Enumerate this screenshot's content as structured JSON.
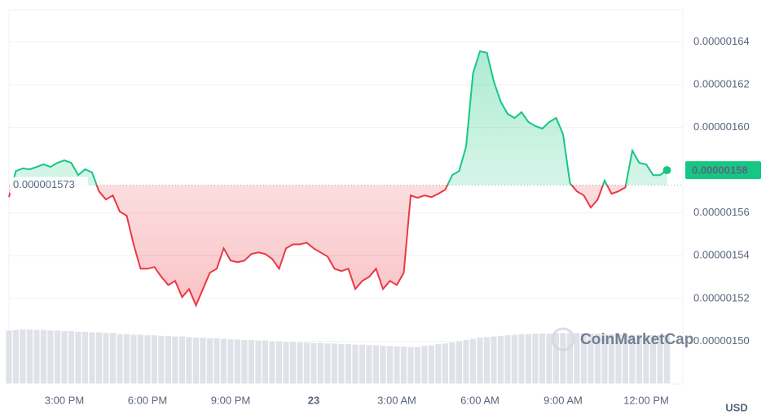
{
  "chart_data": {
    "type": "line",
    "categories": [
      null,
      null,
      null,
      null,
      null,
      null,
      null,
      null,
      "3:00 PM",
      null,
      null,
      null,
      null,
      null,
      null,
      null,
      null,
      null,
      null,
      null,
      "6:00 PM",
      null,
      null,
      null,
      null,
      null,
      null,
      null,
      null,
      null,
      null,
      null,
      "9:00 PM",
      null,
      null,
      null,
      null,
      null,
      null,
      null,
      null,
      null,
      null,
      null,
      "23",
      null,
      null,
      null,
      null,
      null,
      null,
      null,
      null,
      null,
      null,
      null,
      "3:00 AM",
      null,
      null,
      null,
      null,
      null,
      null,
      null,
      null,
      null,
      null,
      null,
      "6:00 AM",
      null,
      null,
      null,
      null,
      null,
      null,
      null,
      null,
      null,
      null,
      null,
      "9:00 AM",
      null,
      null,
      null,
      null,
      null,
      null,
      null,
      null,
      null,
      null,
      null,
      "12:00 PM",
      null,
      null,
      null
    ],
    "values": [
      1.5674e-06,
      1.5796e-06,
      1.5808e-06,
      1.5804e-06,
      1.5815e-06,
      1.5827e-06,
      1.5815e-06,
      1.5834e-06,
      1.5846e-06,
      1.5834e-06,
      1.5777e-06,
      1.5804e-06,
      1.5789e-06,
      1.5701e-06,
      1.5663e-06,
      1.5682e-06,
      1.5606e-06,
      1.5587e-06,
      1.5453e-06,
      1.5339e-06,
      1.5339e-06,
      1.5347e-06,
      1.5301e-06,
      1.5263e-06,
      1.5282e-06,
      1.5206e-06,
      1.5244e-06,
      1.5168e-06,
      1.5244e-06,
      1.532e-06,
      1.5339e-06,
      1.5434e-06,
      1.5377e-06,
      1.537e-06,
      1.5377e-06,
      1.5408e-06,
      1.5415e-06,
      1.5408e-06,
      1.5385e-06,
      1.5339e-06,
      1.5434e-06,
      1.5453e-06,
      1.5453e-06,
      1.5461e-06,
      1.5434e-06,
      1.5415e-06,
      1.5396e-06,
      1.5339e-06,
      1.5328e-06,
      1.5339e-06,
      1.5244e-06,
      1.5282e-06,
      1.5301e-06,
      1.5339e-06,
      1.5244e-06,
      1.5282e-06,
      1.5263e-06,
      1.532e-06,
      1.5682e-06,
      1.5671e-06,
      1.5682e-06,
      1.5674e-06,
      1.569e-06,
      1.5709e-06,
      1.5777e-06,
      1.5796e-06,
      1.5911e-06,
      1.6253e-06,
      1.6356e-06,
      1.6349e-06,
      1.6215e-06,
      1.612e-06,
      1.6063e-06,
      1.6044e-06,
      1.6071e-06,
      1.6025e-06,
      1.6006e-06,
      1.5994e-06,
      1.6025e-06,
      1.6044e-06,
      1.5968e-06,
      1.5739e-06,
      1.5701e-06,
      1.5682e-06,
      1.5625e-06,
      1.5663e-06,
      1.5751e-06,
      1.569e-06,
      1.5701e-06,
      1.572e-06,
      1.5892e-06,
      1.5834e-06,
      1.5827e-06,
      1.5777e-06,
      1.5777e-06,
      1.58e-06
    ],
    "volume": [
      92,
      93,
      94,
      94,
      93,
      93,
      92,
      92,
      91,
      91,
      90,
      90,
      89,
      89,
      88,
      88,
      86,
      86,
      85,
      85,
      84,
      84,
      83,
      83,
      82,
      82,
      81,
      80,
      80,
      79,
      79,
      78,
      77,
      77,
      76,
      76,
      75,
      75,
      74,
      74,
      73,
      73,
      72,
      72,
      71,
      71,
      70,
      70,
      69,
      69,
      68,
      68,
      67,
      67,
      66,
      66,
      65,
      65,
      64,
      64,
      66,
      67,
      69,
      70,
      72,
      74,
      76,
      78,
      80,
      81,
      82,
      83,
      84,
      85,
      86,
      86,
      87,
      87,
      87,
      88,
      88,
      88,
      88,
      87,
      87,
      87,
      86,
      86,
      86,
      85,
      85,
      85,
      84,
      84,
      84,
      84
    ],
    "y2lim": [
      0,
      100
    ],
    "ylim": [
      1.48e-06,
      1.655e-06
    ],
    "yticks": [
      {
        "value": 1.5e-06,
        "label": "0.00000150"
      },
      {
        "value": 1.52e-06,
        "label": "0.00000152"
      },
      {
        "value": 1.54e-06,
        "label": "0.00000154"
      },
      {
        "value": 1.56e-06,
        "label": "0.00000156"
      },
      {
        "value": 1.6e-06,
        "label": "0.00000160"
      },
      {
        "value": 1.62e-06,
        "label": "0.00000162"
      },
      {
        "value": 1.64e-06,
        "label": "0.00000164"
      }
    ],
    "baseline": 1.573e-06,
    "current_price": 1.58e-06,
    "currency": "USD",
    "watermark": "CoinMarketCap",
    "grid": true,
    "colors": {
      "up": "#16c784",
      "down": "#ea3943",
      "volume": "#dfe2e8"
    }
  }
}
